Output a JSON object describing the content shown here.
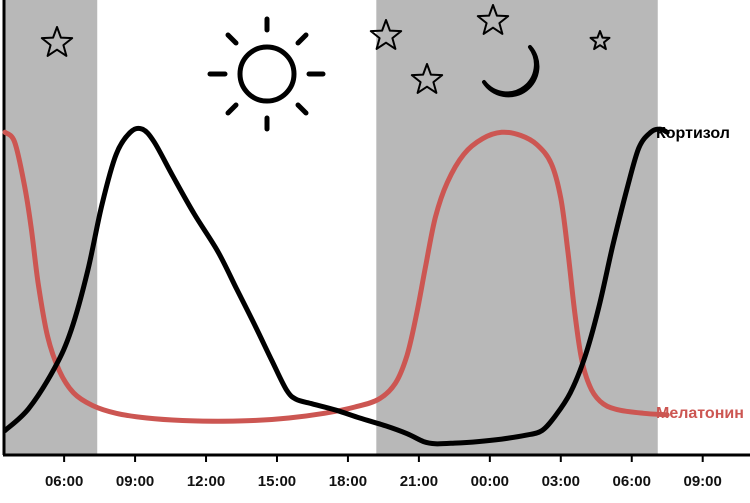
{
  "chart_data": {
    "type": "line",
    "x_unit": "clock time (hours, continuing past midnight)",
    "xlim": [
      3.5,
      35.0
    ],
    "ylim": [
      0,
      100
    ],
    "grid": false,
    "night_shading": [
      [
        3.5,
        7.4
      ],
      [
        19.2,
        31.1
      ]
    ],
    "xticks": [
      {
        "x": 6,
        "label": "06:00"
      },
      {
        "x": 9,
        "label": "09:00"
      },
      {
        "x": 12,
        "label": "12:00"
      },
      {
        "x": 15,
        "label": "15:00"
      },
      {
        "x": 18,
        "label": "18:00"
      },
      {
        "x": 21,
        "label": "21:00"
      },
      {
        "x": 24,
        "label": "00:00"
      },
      {
        "x": 27,
        "label": "03:00"
      },
      {
        "x": 30,
        "label": "06:00"
      },
      {
        "x": 33,
        "label": "09:00"
      }
    ],
    "series": [
      {
        "name": "Кортизол",
        "color": "#000000",
        "points": [
          [
            3.5,
            3
          ],
          [
            4.5,
            10
          ],
          [
            5.6,
            23
          ],
          [
            6.3,
            35
          ],
          [
            7.0,
            54
          ],
          [
            7.6,
            75
          ],
          [
            8.2,
            91
          ],
          [
            8.8,
            98
          ],
          [
            9.3,
            99
          ],
          [
            9.8,
            95
          ],
          [
            10.6,
            84
          ],
          [
            11.5,
            72
          ],
          [
            12.5,
            60
          ],
          [
            13.3,
            48
          ],
          [
            14.1,
            36
          ],
          [
            14.8,
            25
          ],
          [
            15.4,
            16
          ],
          [
            15.8,
            13
          ],
          [
            16.5,
            11.5
          ],
          [
            17.5,
            9.5
          ],
          [
            18.5,
            7
          ],
          [
            19.6,
            4.5
          ],
          [
            20.5,
            2
          ],
          [
            21.2,
            -0.5
          ],
          [
            21.7,
            -1.2
          ],
          [
            22.5,
            -1
          ],
          [
            23.5,
            -0.5
          ],
          [
            24.5,
            0.3
          ],
          [
            25.5,
            1.5
          ],
          [
            26.2,
            3
          ],
          [
            26.8,
            8
          ],
          [
            27.4,
            15
          ],
          [
            28.0,
            26
          ],
          [
            28.6,
            42
          ],
          [
            29.2,
            62
          ],
          [
            29.8,
            80
          ],
          [
            30.3,
            93
          ],
          [
            30.8,
            98
          ],
          [
            31.2,
            99
          ],
          [
            31.5,
            98
          ]
        ]
      },
      {
        "name": "Мелатонин",
        "color": "#cc5652",
        "points": [
          [
            3.5,
            98
          ],
          [
            3.9,
            95
          ],
          [
            4.3,
            82
          ],
          [
            4.6,
            68
          ],
          [
            4.9,
            50
          ],
          [
            5.3,
            33
          ],
          [
            5.8,
            22
          ],
          [
            6.4,
            15
          ],
          [
            7.2,
            11
          ],
          [
            8.2,
            8.5
          ],
          [
            9.5,
            7
          ],
          [
            11.0,
            6.2
          ],
          [
            12.5,
            6
          ],
          [
            14.0,
            6.2
          ],
          [
            15.5,
            7
          ],
          [
            17.0,
            8.5
          ],
          [
            18.3,
            10.5
          ],
          [
            19.3,
            13
          ],
          [
            20.0,
            18
          ],
          [
            20.5,
            27
          ],
          [
            20.9,
            40
          ],
          [
            21.3,
            56
          ],
          [
            21.7,
            71
          ],
          [
            22.2,
            82
          ],
          [
            22.9,
            91
          ],
          [
            23.7,
            96
          ],
          [
            24.5,
            98
          ],
          [
            25.3,
            97
          ],
          [
            26.0,
            94
          ],
          [
            26.6,
            88
          ],
          [
            27.0,
            77
          ],
          [
            27.3,
            60
          ],
          [
            27.6,
            40
          ],
          [
            27.9,
            25
          ],
          [
            28.3,
            16
          ],
          [
            28.8,
            11.5
          ],
          [
            29.5,
            9.5
          ],
          [
            30.5,
            8.5
          ],
          [
            31.5,
            8
          ]
        ]
      }
    ],
    "decorations": {
      "day_symbol": "sun-icon",
      "night_symbol": "crescent-moon-icon",
      "night_decor": "star-icon"
    }
  }
}
